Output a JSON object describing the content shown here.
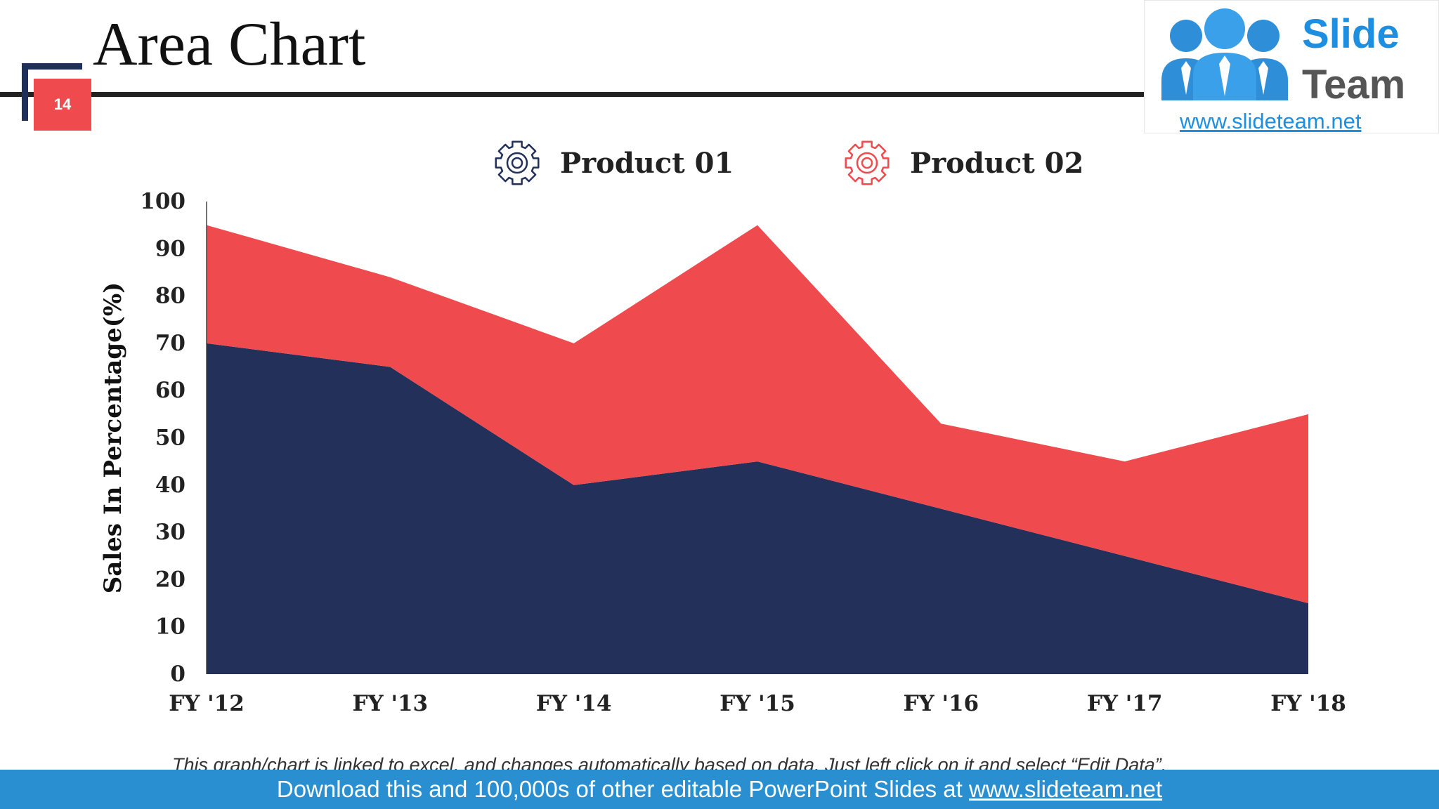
{
  "slide": {
    "title": "Area Chart",
    "page_number": "14"
  },
  "logo": {
    "word1": "Slide",
    "word2": "Team",
    "url": "www.slideteam.net"
  },
  "legend": [
    {
      "label": "Product 01",
      "color": "#22305a",
      "icon": "gear-icon"
    },
    {
      "label": "Product 02",
      "color": "#ef4b4f",
      "icon": "gear-icon"
    }
  ],
  "footnote": "This graph/chart is linked to excel, and changes automatically based on data. Just left click on it and select “Edit Data”.",
  "banner": {
    "text": "Download this and 100,000s of other editable PowerPoint Slides at ",
    "link": "www.slideteam.net"
  },
  "chart_data": {
    "type": "area",
    "stacked": true,
    "categories": [
      "FY '12",
      "FY '13",
      "FY '14",
      "FY '15",
      "FY '16",
      "FY '17",
      "FY '18"
    ],
    "series": [
      {
        "name": "Product 01",
        "values": [
          70,
          65,
          40,
          45,
          35,
          25,
          15
        ],
        "color": "#22305a"
      },
      {
        "name": "Product 02",
        "values": [
          25,
          19,
          30,
          50,
          18,
          20,
          40
        ],
        "color": "#ef4b4f"
      }
    ],
    "ylabel": "Sales In Percentage(%)",
    "xlabel": "",
    "ylim": [
      0,
      100
    ],
    "yticks": [
      0,
      10,
      20,
      30,
      40,
      50,
      60,
      70,
      80,
      90,
      100
    ],
    "grid": false,
    "legend_position": "top"
  }
}
